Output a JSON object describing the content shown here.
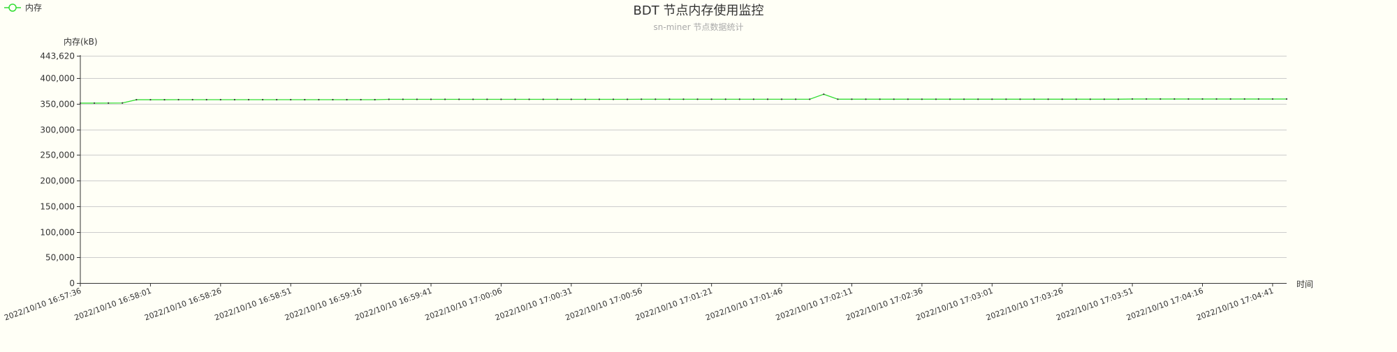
{
  "chart_data": {
    "type": "line",
    "title": "BDT 节点内存使用监控",
    "subtitle": "sn-miner 节点数据统计",
    "ylabel": "内存(kB)",
    "xlabel": "时间",
    "ylim": [
      0,
      443620
    ],
    "yticks": [
      "0",
      "50,000",
      "100,000",
      "150,000",
      "200,000",
      "250,000",
      "300,000",
      "350,000",
      "400,000",
      "443,620"
    ],
    "ytick_values": [
      0,
      50000,
      100000,
      150000,
      200000,
      250000,
      300000,
      350000,
      400000,
      443620
    ],
    "xtick_labels": [
      "2022/10/10 16:57:36",
      "2022/10/10 16:58:01",
      "2022/10/10 16:58:26",
      "2022/10/10 16:58:51",
      "2022/10/10 16:59:16",
      "2022/10/10 16:59:41",
      "2022/10/10 17:00:06",
      "2022/10/10 17:00:31",
      "2022/10/10 17:00:56",
      "2022/10/10 17:01:21",
      "2022/10/10 17:01:46",
      "2022/10/10 17:02:11",
      "2022/10/10 17:02:36",
      "2022/10/10 17:03:01",
      "2022/10/10 17:03:26",
      "2022/10/10 17:03:51",
      "2022/10/10 17:04:16",
      "2022/10/10 17:04:41"
    ],
    "grid": true,
    "legend_position": "top-left",
    "series": [
      {
        "name": "内存",
        "color": "#33dd33",
        "values": [
          351200,
          351200,
          351300,
          351400,
          357800,
          357800,
          357800,
          357900,
          357900,
          357900,
          357900,
          357900,
          357900,
          357900,
          357900,
          357900,
          357900,
          357900,
          357900,
          357900,
          357900,
          357900,
          358600,
          358600,
          358600,
          358600,
          358600,
          358600,
          358600,
          358600,
          358600,
          358600,
          358600,
          358600,
          358600,
          358600,
          358600,
          358600,
          358600,
          358600,
          358700,
          358700,
          358700,
          358700,
          358700,
          358700,
          358700,
          358700,
          358700,
          358700,
          358700,
          358700,
          358700,
          368500,
          358800,
          358800,
          358800,
          358800,
          358800,
          358800,
          358800,
          358800,
          358800,
          358800,
          358800,
          358800,
          358800,
          358800,
          358800,
          358800,
          358800,
          358800,
          358800,
          358800,
          358800,
          359200,
          359200,
          359200,
          359200,
          359200,
          359200,
          359200,
          359200,
          359200,
          359200,
          359200,
          359200
        ]
      }
    ]
  }
}
